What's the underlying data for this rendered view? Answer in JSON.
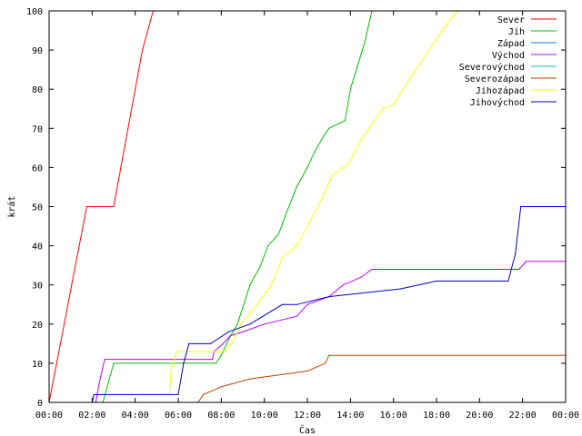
{
  "chart_data": {
    "type": "line",
    "title": "",
    "xlabel": "Čas",
    "ylabel": "krát",
    "xlim": [
      "00:00",
      "24:00"
    ],
    "ylim": [
      0,
      100
    ],
    "grid": false,
    "legend_position": "top-right",
    "x_tick_labels": [
      "00:00",
      "02:00",
      "04:00",
      "06:00",
      "08:00",
      "10:00",
      "12:00",
      "14:00",
      "16:00",
      "18:00",
      "20:00",
      "22:00",
      "00:00"
    ],
    "y_ticks": [
      0,
      10,
      20,
      30,
      40,
      50,
      60,
      70,
      80,
      90,
      100
    ],
    "series": [
      {
        "name": "Sever",
        "color": "#ff0000",
        "points": [
          [
            "00:00",
            0
          ],
          [
            "00:21",
            10
          ],
          [
            "00:42",
            20
          ],
          [
            "01:03",
            30
          ],
          [
            "01:24",
            40
          ],
          [
            "01:45",
            50
          ],
          [
            "03:00",
            50
          ],
          [
            "03:20",
            60
          ],
          [
            "03:40",
            70
          ],
          [
            "04:00",
            80
          ],
          [
            "04:20",
            90
          ],
          [
            "04:50",
            100
          ]
        ]
      },
      {
        "name": "Jih",
        "color": "#00c000",
        "points": [
          [
            "02:30",
            0
          ],
          [
            "02:45",
            5
          ],
          [
            "03:00",
            10
          ],
          [
            "07:45",
            10
          ],
          [
            "08:00",
            12
          ],
          [
            "08:20",
            16
          ],
          [
            "08:45",
            20
          ],
          [
            "09:20",
            30
          ],
          [
            "09:50",
            35
          ],
          [
            "10:10",
            40
          ],
          [
            "10:40",
            43
          ],
          [
            "11:00",
            48
          ],
          [
            "11:30",
            55
          ],
          [
            "12:00",
            60
          ],
          [
            "12:20",
            64
          ],
          [
            "12:45",
            68
          ],
          [
            "13:00",
            70
          ],
          [
            "13:45",
            72
          ],
          [
            "14:00",
            80
          ],
          [
            "14:20",
            86
          ],
          [
            "14:40",
            92
          ],
          [
            "15:00",
            100
          ]
        ]
      },
      {
        "name": "Západ",
        "color": "#0080ff",
        "points": []
      },
      {
        "name": "Východ",
        "color": "#c000ff",
        "points": [
          [
            "02:10",
            0
          ],
          [
            "02:20",
            5
          ],
          [
            "02:35",
            11
          ],
          [
            "07:35",
            11
          ],
          [
            "07:40",
            13
          ],
          [
            "08:05",
            15
          ],
          [
            "08:25",
            17
          ],
          [
            "09:00",
            18
          ],
          [
            "10:00",
            20
          ],
          [
            "11:30",
            22
          ],
          [
            "12:00",
            25
          ],
          [
            "13:00",
            27
          ],
          [
            "13:40",
            30
          ],
          [
            "14:30",
            32
          ],
          [
            "15:00",
            34
          ],
          [
            "21:50",
            34
          ],
          [
            "22:10",
            36
          ],
          [
            "24:00",
            36
          ]
        ]
      },
      {
        "name": "Severovýchod",
        "color": "#00c0c0",
        "points": []
      },
      {
        "name": "Severozápad",
        "color": "#c04000",
        "points": [
          [
            "06:55",
            0
          ],
          [
            "07:10",
            2
          ],
          [
            "08:00",
            4
          ],
          [
            "09:20",
            6
          ],
          [
            "12:00",
            8
          ],
          [
            "12:50",
            10
          ],
          [
            "13:00",
            12
          ],
          [
            "24:00",
            12
          ]
        ]
      },
      {
        "name": "Jihozápad",
        "color": "#ffff00",
        "points": [
          [
            "05:35",
            2
          ],
          [
            "05:40",
            8
          ],
          [
            "05:55",
            13
          ],
          [
            "08:10",
            13
          ],
          [
            "08:30",
            15
          ],
          [
            "08:55",
            20
          ],
          [
            "09:40",
            25
          ],
          [
            "10:20",
            30
          ],
          [
            "10:50",
            37
          ],
          [
            "11:30",
            40
          ],
          [
            "12:00",
            45
          ],
          [
            "12:40",
            52
          ],
          [
            "13:10",
            58
          ],
          [
            "13:55",
            61
          ],
          [
            "14:30",
            67
          ],
          [
            "15:30",
            75
          ],
          [
            "16:00",
            76
          ],
          [
            "16:40",
            82
          ],
          [
            "17:40",
            90
          ],
          [
            "18:40",
            98
          ],
          [
            "19:00",
            100
          ]
        ]
      },
      {
        "name": "Jihovýchod",
        "color": "#0000c0",
        "points": [
          [
            "02:00",
            0
          ],
          [
            "02:05",
            2
          ],
          [
            "06:00",
            2
          ],
          [
            "06:15",
            10
          ],
          [
            "06:30",
            15
          ],
          [
            "07:30",
            15
          ],
          [
            "08:20",
            18
          ],
          [
            "09:20",
            20
          ],
          [
            "10:50",
            25
          ],
          [
            "11:30",
            25
          ],
          [
            "13:00",
            27
          ],
          [
            "16:20",
            29
          ],
          [
            "18:00",
            31
          ],
          [
            "21:20",
            31
          ],
          [
            "21:40",
            38
          ],
          [
            "21:55",
            50
          ],
          [
            "24:00",
            50
          ]
        ]
      }
    ]
  }
}
